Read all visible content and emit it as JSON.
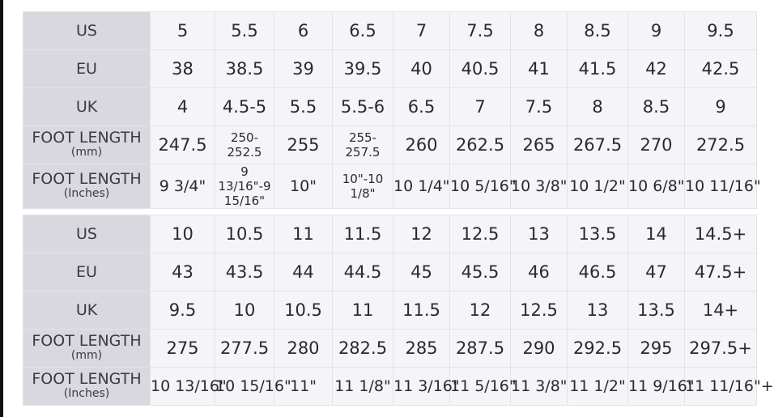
{
  "tables": [
    {
      "rows": [
        {
          "label": "US",
          "sub": "",
          "values": [
            "5",
            "5.5",
            "6",
            "6.5",
            "7",
            "7.5",
            "8",
            "8.5",
            "9",
            "9.5"
          ]
        },
        {
          "label": "EU",
          "sub": "",
          "values": [
            "38",
            "38.5",
            "39",
            "39.5",
            "40",
            "40.5",
            "41",
            "41.5",
            "42",
            "42.5"
          ]
        },
        {
          "label": "UK",
          "sub": "",
          "values": [
            "4",
            "4.5-5",
            "5.5",
            "5.5-6",
            "6.5",
            "7",
            "7.5",
            "8",
            "8.5",
            "9"
          ]
        },
        {
          "label": "FOOT LENGTH",
          "sub": "(mm)",
          "values": [
            "247.5",
            "250-252.5",
            "255",
            "255-257.5",
            "260",
            "262.5",
            "265",
            "267.5",
            "270",
            "272.5"
          ]
        },
        {
          "label": "FOOT LENGTH",
          "sub": "(Inches)",
          "values": [
            "9 3/4\"",
            "9 13/16\"-9 15/16\"",
            "10\"",
            "10\"-10 1/8\"",
            "10 1/4\"",
            "10 5/16\"",
            "10 3/8\"",
            "10 1/2\"",
            "10 6/8\"",
            "10 11/16\""
          ]
        }
      ]
    },
    {
      "rows": [
        {
          "label": "US",
          "sub": "",
          "values": [
            "10",
            "10.5",
            "11",
            "11.5",
            "12",
            "12.5",
            "13",
            "13.5",
            "14",
            "14.5+"
          ]
        },
        {
          "label": "EU",
          "sub": "",
          "values": [
            "43",
            "43.5",
            "44",
            "44.5",
            "45",
            "45.5",
            "46",
            "46.5",
            "47",
            "47.5+"
          ]
        },
        {
          "label": "UK",
          "sub": "",
          "values": [
            "9.5",
            "10",
            "10.5",
            "11",
            "11.5",
            "12",
            "12.5",
            "13",
            "13.5",
            "14+"
          ]
        },
        {
          "label": "FOOT LENGTH",
          "sub": "(mm)",
          "values": [
            "275",
            "277.5",
            "280",
            "282.5",
            "285",
            "287.5",
            "290",
            "292.5",
            "295",
            "297.5+"
          ]
        },
        {
          "label": "FOOT LENGTH",
          "sub": "(Inches)",
          "values": [
            "10 13/16\"",
            "10 15/16\"",
            "11\"",
            "11 1/8\"",
            "11 3/16\"",
            "11 5/16\"",
            "11 3/8\"",
            "11 1/2\"",
            "11 9/16\"",
            "11 11/16\"+"
          ]
        }
      ]
    }
  ]
}
